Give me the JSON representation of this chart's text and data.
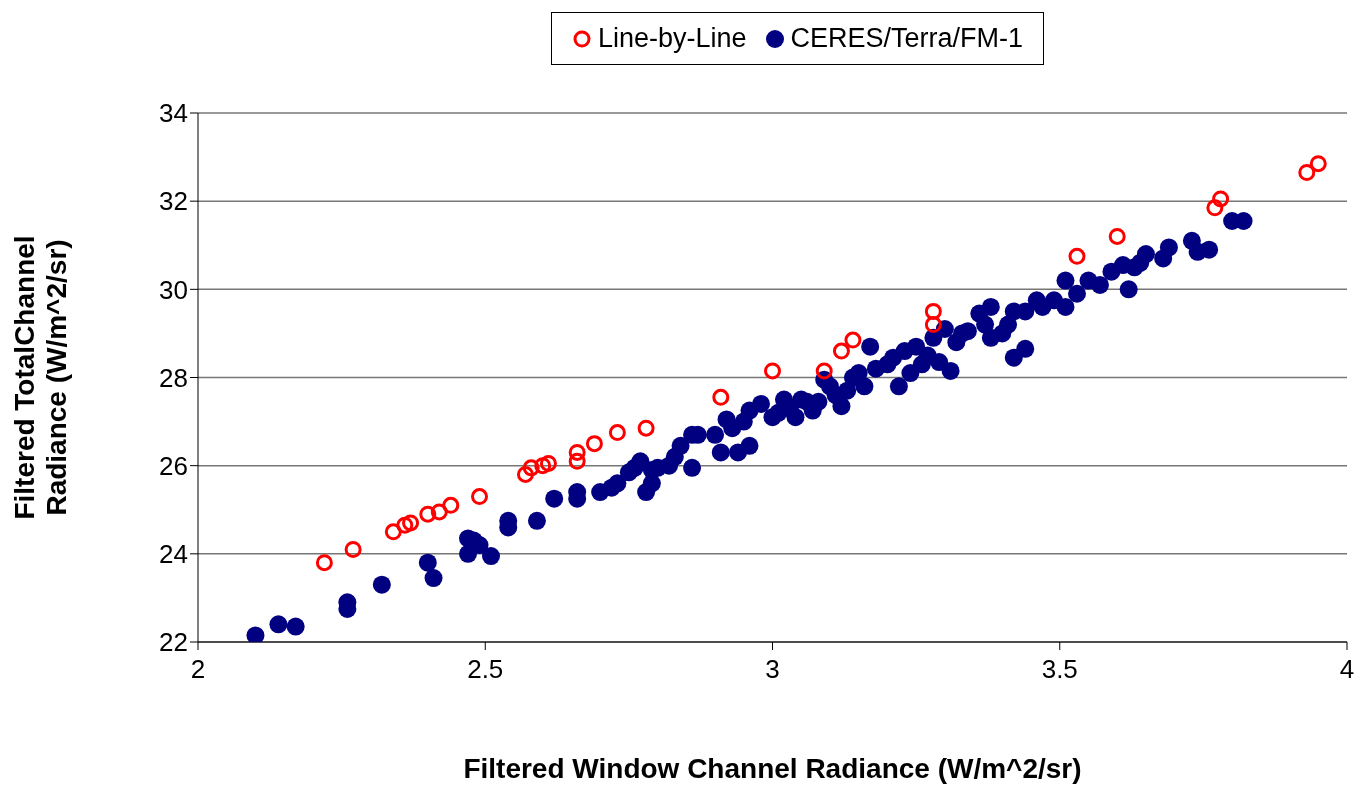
{
  "chart_data": {
    "type": "scatter",
    "xlabel": "Filtered Window Channel Radiance (W/m^2/sr)",
    "ylabel": "Filtered TotalChannel Radiance (W/m^2/sr)",
    "xlim": [
      2,
      4
    ],
    "xticks": [
      2,
      2.5,
      3,
      3.5,
      4
    ],
    "ylim": [
      22,
      34
    ],
    "yticks": [
      22,
      24,
      26,
      28,
      30,
      32,
      34
    ],
    "grid": "y",
    "legend": "top",
    "marker": "circle",
    "series": [
      {
        "name": "Line-by-Line",
        "color": "#ff0000",
        "x": [
          2.22,
          2.27,
          2.34,
          2.36,
          2.37,
          2.4,
          2.42,
          2.44,
          2.49,
          2.57,
          2.58,
          2.6,
          2.61,
          2.66,
          2.66,
          2.69,
          2.73,
          2.78,
          2.91,
          3.0,
          3.09,
          3.12,
          3.14,
          3.28,
          3.28,
          3.53,
          3.6,
          3.77,
          3.78,
          3.93,
          3.95
        ],
        "values": [
          23.8,
          24.1,
          24.5,
          24.65,
          24.7,
          24.9,
          24.95,
          25.1,
          25.3,
          25.8,
          25.95,
          26.0,
          26.05,
          26.1,
          26.3,
          26.5,
          26.75,
          26.85,
          27.55,
          28.15,
          28.15,
          28.6,
          28.85,
          29.2,
          29.5,
          30.75,
          31.2,
          31.85,
          32.05,
          32.65,
          32.85
        ]
      },
      {
        "name": "CERES/Terra/FM-1",
        "color": "#000080",
        "x": [
          2.1,
          2.14,
          2.17,
          2.26,
          2.26,
          2.32,
          2.4,
          2.41,
          2.47,
          2.47,
          2.48,
          2.49,
          2.51,
          2.54,
          2.54,
          2.59,
          2.62,
          2.66,
          2.66,
          2.7,
          2.72,
          2.73,
          2.75,
          2.76,
          2.77,
          2.78,
          2.79,
          2.79,
          2.8,
          2.82,
          2.83,
          2.84,
          2.86,
          2.86,
          2.87,
          2.9,
          2.91,
          2.92,
          2.93,
          2.94,
          2.95,
          2.96,
          2.96,
          2.98,
          3.0,
          3.01,
          3.02,
          3.03,
          3.04,
          3.05,
          3.06,
          3.07,
          3.08,
          3.09,
          3.1,
          3.11,
          3.12,
          3.13,
          3.14,
          3.15,
          3.16,
          3.17,
          3.18,
          3.2,
          3.21,
          3.22,
          3.23,
          3.24,
          3.25,
          3.26,
          3.27,
          3.28,
          3.29,
          3.3,
          3.31,
          3.32,
          3.33,
          3.34,
          3.36,
          3.37,
          3.38,
          3.38,
          3.4,
          3.41,
          3.42,
          3.42,
          3.44,
          3.44,
          3.46,
          3.47,
          3.49,
          3.51,
          3.51,
          3.53,
          3.55,
          3.57,
          3.59,
          3.61,
          3.62,
          3.63,
          3.64,
          3.65,
          3.68,
          3.69,
          3.73,
          3.74,
          3.76,
          3.8,
          3.82
        ],
        "values": [
          22.15,
          22.4,
          22.35,
          22.75,
          22.9,
          23.3,
          23.8,
          23.45,
          24.0,
          24.35,
          24.3,
          24.2,
          23.95,
          24.6,
          24.75,
          24.75,
          25.25,
          25.25,
          25.4,
          25.4,
          25.5,
          25.6,
          25.85,
          25.95,
          26.1,
          25.4,
          25.6,
          25.9,
          25.95,
          26.0,
          26.2,
          26.45,
          26.7,
          25.95,
          26.7,
          26.7,
          26.3,
          27.05,
          26.85,
          26.3,
          27.0,
          27.25,
          26.45,
          27.4,
          27.1,
          27.2,
          27.5,
          27.3,
          27.1,
          27.5,
          27.45,
          27.25,
          27.45,
          27.95,
          27.8,
          27.6,
          27.35,
          27.7,
          28.0,
          28.1,
          27.8,
          28.7,
          28.2,
          28.3,
          28.45,
          27.8,
          28.6,
          28.1,
          28.7,
          28.3,
          28.5,
          28.9,
          28.35,
          29.1,
          28.15,
          28.8,
          29.0,
          29.05,
          29.45,
          29.2,
          29.6,
          28.9,
          29.0,
          29.2,
          28.45,
          29.5,
          29.5,
          28.65,
          29.75,
          29.6,
          29.75,
          30.2,
          29.6,
          29.9,
          30.2,
          30.1,
          30.4,
          30.55,
          30.0,
          30.5,
          30.6,
          30.8,
          30.7,
          30.95,
          31.1,
          30.85,
          30.9,
          31.55,
          31.55
        ]
      }
    ]
  }
}
